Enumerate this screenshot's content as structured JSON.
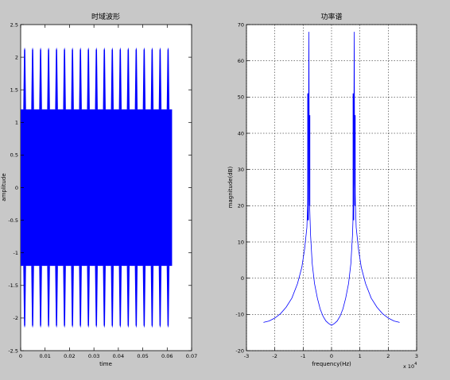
{
  "window": {
    "background": "#c8c8c8"
  },
  "chart_data": [
    {
      "type": "line",
      "title": "时域波形",
      "xlabel": "time",
      "ylabel": "amplitude",
      "xlim": [
        0,
        0.07
      ],
      "ylim": [
        -2.5,
        2.5
      ],
      "x_ticks": [
        "0",
        "0.01",
        "0.02",
        "0.03",
        "0.04",
        "0.05",
        "0.06",
        "0.07"
      ],
      "y_ticks": [
        "2.5",
        "2",
        "1.5",
        "1",
        "0.5",
        "0",
        "-0.5",
        "-1",
        "-1.5",
        "-2",
        "-2.5"
      ],
      "grid": false,
      "color": "#0000ff",
      "series": [
        {
          "description": "dense beating waveform, solid band between -1.2 and 1.2 with periodic peaks reaching about +/-2.15",
          "x_range": [
            0,
            0.062
          ],
          "band": [
            -1.2,
            1.2
          ],
          "peak_amplitude": 2.15,
          "peak_count": 19
        }
      ]
    },
    {
      "type": "line",
      "title": "功率谱",
      "xlabel": "frequency(Hz)",
      "ylabel": "magnitude(dB)",
      "x_multiplier_label": "x 10",
      "x_multiplier_exponent": "4",
      "xlim": [
        -3,
        3
      ],
      "ylim": [
        -20,
        70
      ],
      "x_ticks": [
        "-3",
        "-2",
        "-1",
        "0",
        "1",
        "2",
        "3"
      ],
      "y_ticks": [
        "70",
        "60",
        "50",
        "40",
        "30",
        "20",
        "10",
        "0",
        "-10",
        "-20"
      ],
      "grid": true,
      "color": "#0000ff",
      "series": [
        {
          "x": [
            -2.4,
            -2.2,
            -2.0,
            -1.8,
            -1.6,
            -1.4,
            -1.2,
            -1.05,
            -0.95,
            -0.87,
            -0.82,
            -0.8,
            -0.78,
            -0.74,
            -0.68,
            -0.6,
            -0.5,
            -0.4,
            -0.3,
            -0.2,
            -0.1,
            0.0,
            0.1,
            0.2,
            0.3,
            0.4,
            0.5,
            0.6,
            0.68,
            0.74,
            0.78,
            0.8,
            0.82,
            0.87,
            0.95,
            1.05,
            1.2,
            1.4,
            1.6,
            1.8,
            2.0,
            2.2,
            2.4
          ],
          "y": [
            -12.2,
            -11.8,
            -11.0,
            -9.8,
            -8.0,
            -5.5,
            -1.5,
            3.0,
            8.0,
            14.0,
            26.0,
            68.0,
            22.0,
            12.0,
            4.0,
            -1.5,
            -5.5,
            -8.5,
            -10.5,
            -11.8,
            -12.5,
            -13.0,
            -12.5,
            -11.8,
            -10.5,
            -8.5,
            -5.5,
            -1.5,
            4.0,
            12.0,
            22.0,
            68.0,
            26.0,
            14.0,
            8.0,
            3.0,
            -1.5,
            -5.5,
            -8.0,
            -9.8,
            -11.0,
            -11.8,
            -12.2
          ]
        }
      ]
    }
  ]
}
